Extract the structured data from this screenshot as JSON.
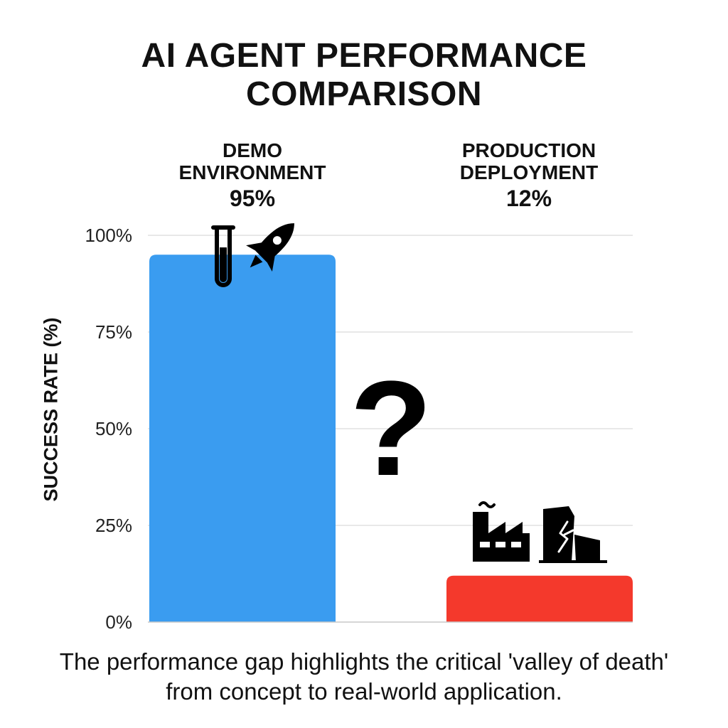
{
  "chart_data": {
    "type": "bar",
    "title_lines": [
      "AI AGENT PERFORMANCE",
      "COMPARISON"
    ],
    "ylabel": "SUCCESS RATE (%)",
    "ylim": [
      0,
      100
    ],
    "yticks": [
      0,
      25,
      50,
      75,
      100
    ],
    "ytick_labels": [
      "0%",
      "25%",
      "50%",
      "75%",
      "100%"
    ],
    "grid": true,
    "bars": [
      {
        "label_lines": [
          "DEMO",
          "ENVIRONMENT"
        ],
        "value": 95,
        "value_label": "95%",
        "color": "#3a9cf0",
        "icons": [
          "test-tube-icon",
          "rocket-icon"
        ]
      },
      {
        "label_lines": [
          "PRODUCTION",
          "DEPLOYMENT"
        ],
        "value": 12,
        "value_label": "12%",
        "color": "#f4392c",
        "icons": [
          "factory-icon",
          "collapsing-building-icon"
        ]
      }
    ],
    "center_symbol": "?",
    "caption": "The performance gap highlights the critical 'valley of death' from concept to real-world application."
  }
}
